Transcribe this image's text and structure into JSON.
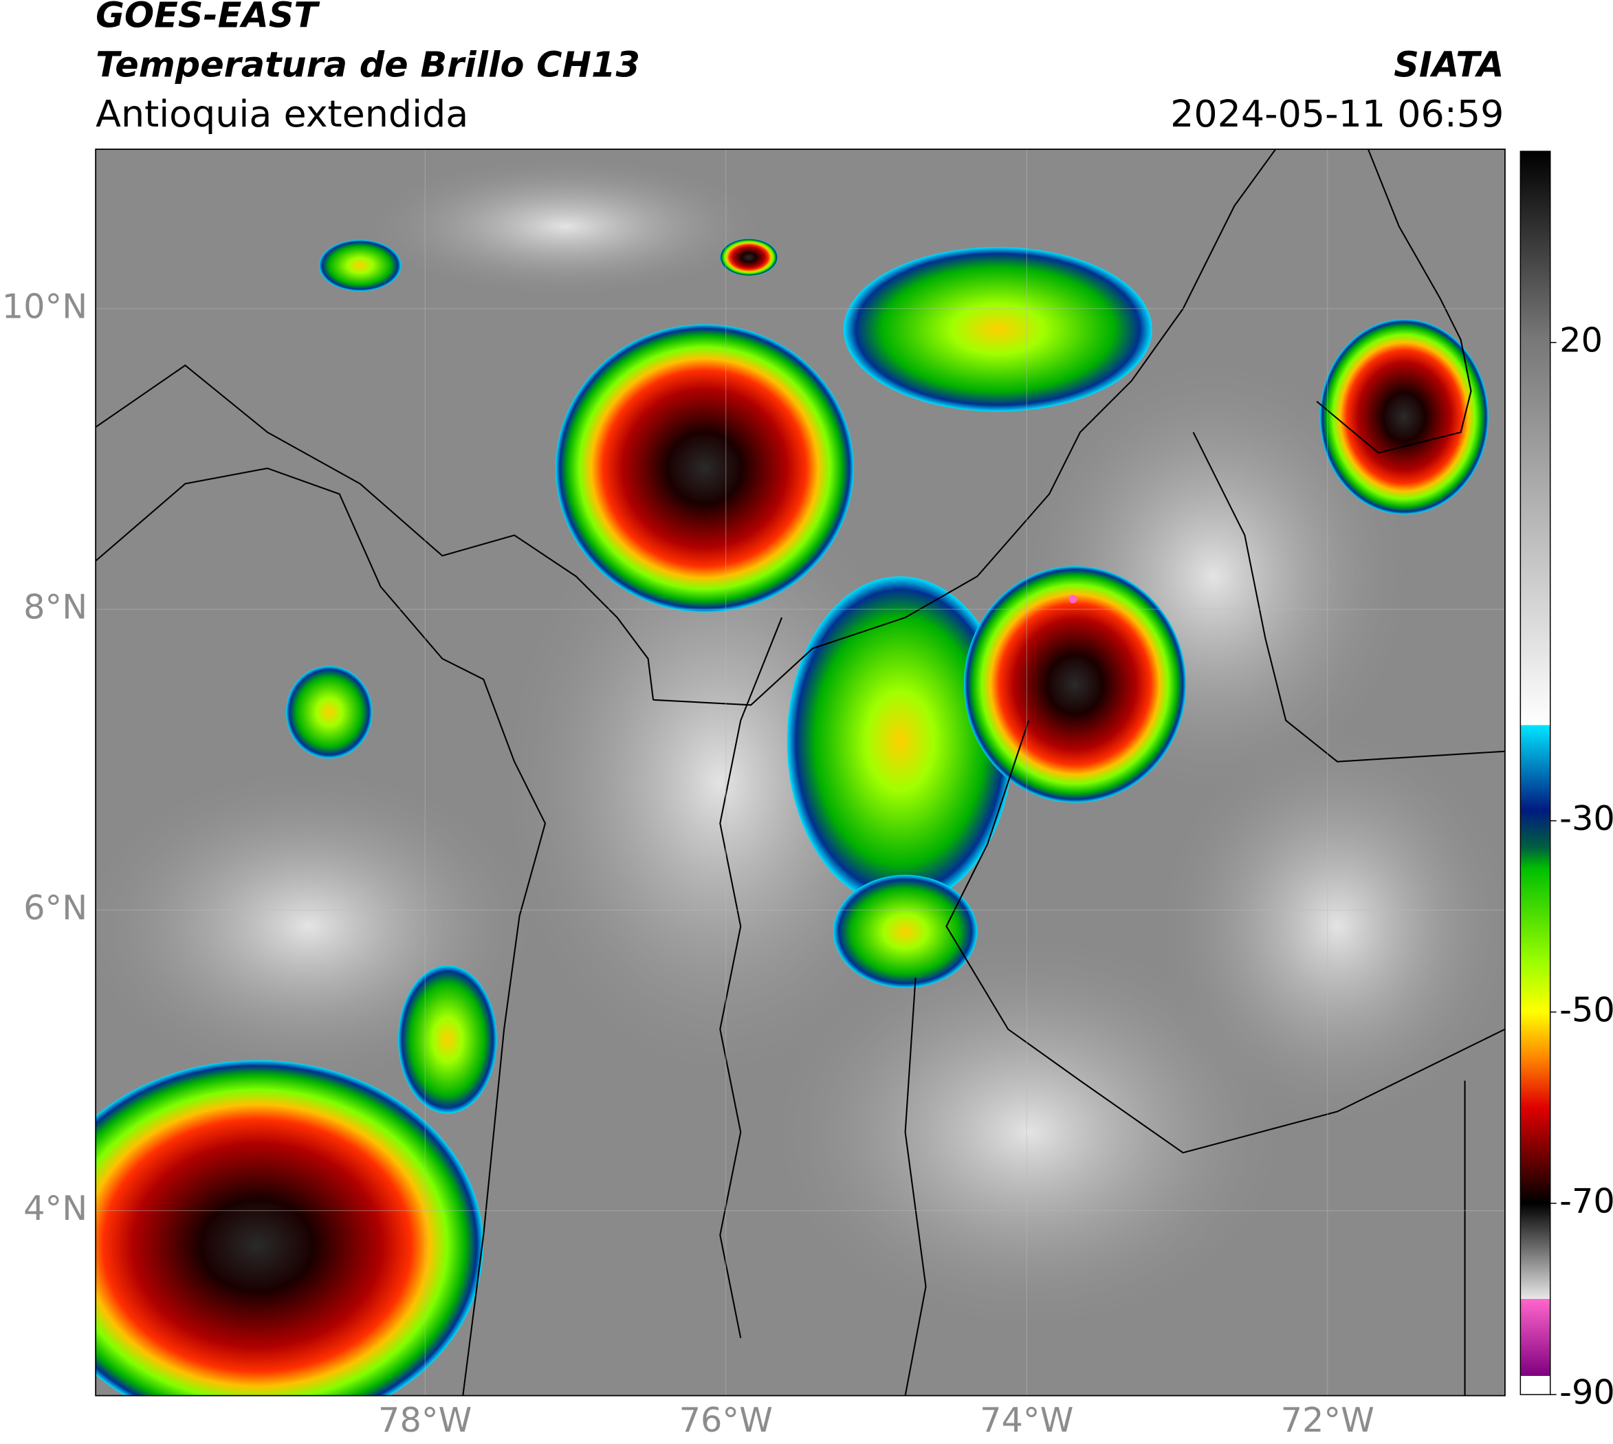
{
  "header": {
    "title": "GOES-EAST",
    "subtitle": "Temperatura de Brillo CH13",
    "region": "Antioquia extendida",
    "source": "SIATA",
    "timestamp": "2024-05-11 06:59"
  },
  "map": {
    "xlim": [
      -80.19,
      -70.82
    ],
    "ylim": [
      2.77,
      11.06
    ],
    "xticks": [
      {
        "value": -78,
        "label": "78°W"
      },
      {
        "value": -76,
        "label": "76°W"
      },
      {
        "value": -74,
        "label": "74°W"
      },
      {
        "value": -72,
        "label": "72°W"
      }
    ],
    "yticks": [
      {
        "value": 4,
        "label": "4°N"
      },
      {
        "value": 6,
        "label": "6°N"
      },
      {
        "value": 8,
        "label": "8°N"
      },
      {
        "value": 10,
        "label": "10°N"
      }
    ]
  },
  "colorbar": {
    "lim": [
      -90,
      40
    ],
    "ticks": [
      -90,
      -70,
      -50,
      -30,
      20
    ]
  }
}
